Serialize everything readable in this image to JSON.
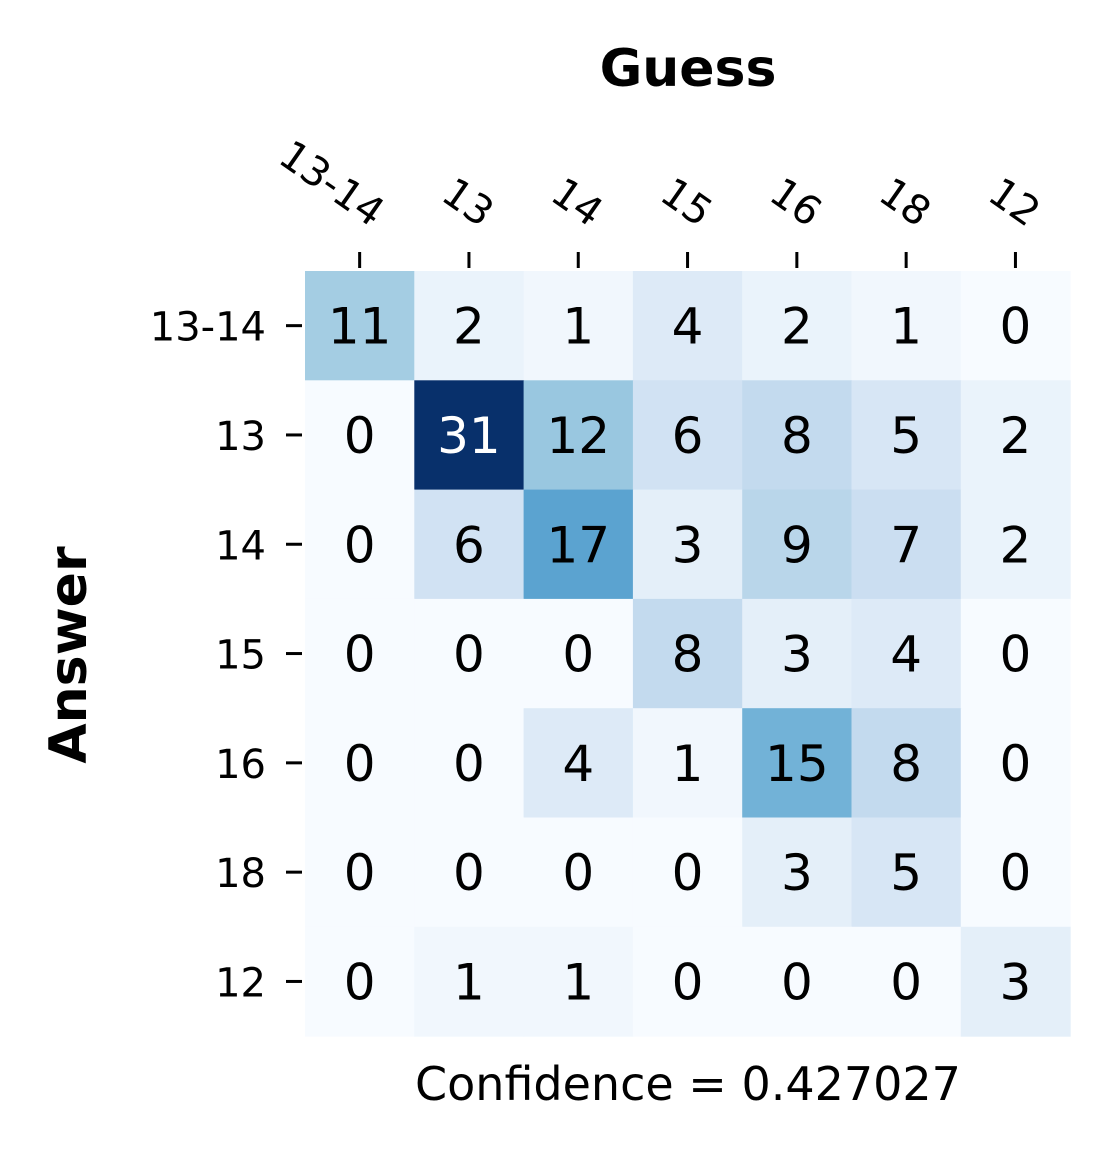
{
  "chart_data": {
    "type": "heatmap",
    "xlabel": "Guess",
    "ylabel": "Answer",
    "x_categories": [
      "13-14",
      "13",
      "14",
      "15",
      "16",
      "18",
      "12"
    ],
    "y_categories": [
      "13-14",
      "13",
      "14",
      "15",
      "16",
      "18",
      "12"
    ],
    "values": [
      [
        11,
        2,
        1,
        4,
        2,
        1,
        0
      ],
      [
        0,
        31,
        12,
        6,
        8,
        5,
        2
      ],
      [
        0,
        6,
        17,
        3,
        9,
        7,
        2
      ],
      [
        0,
        0,
        0,
        8,
        3,
        4,
        0
      ],
      [
        0,
        0,
        4,
        1,
        15,
        8,
        0
      ],
      [
        0,
        0,
        0,
        0,
        3,
        5,
        0
      ],
      [
        0,
        1,
        1,
        0,
        0,
        0,
        3
      ]
    ],
    "colormap": "Blues",
    "vmin": 0,
    "vmax": 31,
    "x_axis_position": "top",
    "colorbar": false,
    "annotation": "Confidence = 0.427027"
  }
}
